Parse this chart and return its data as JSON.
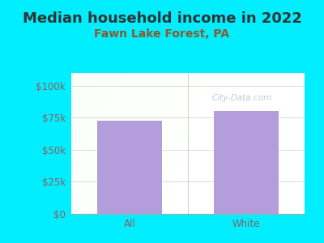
{
  "title": "Median household income in 2022",
  "subtitle": "Fawn Lake Forest, PA",
  "categories": [
    "All",
    "White"
  ],
  "values": [
    73000,
    80500
  ],
  "bar_color": "#b39ddb",
  "background_color": "#00eeff",
  "plot_bg_color_left": "#d4edda",
  "plot_bg_color_right": "#f0f8f0",
  "plot_bg_color_top": "#e8f5e9",
  "plot_bg_color_bottom": "#ffffff",
  "title_color": "#333333",
  "subtitle_color": "#8b5a2b",
  "tick_color": "#8b6060",
  "yticks": [
    0,
    25000,
    50000,
    75000,
    100000
  ],
  "ytick_labels": [
    "$0",
    "$25k",
    "$50k",
    "$75k",
    "$100k"
  ],
  "ylim": [
    0,
    110000
  ],
  "watermark": "City-Data.com",
  "title_fontsize": 13,
  "subtitle_fontsize": 10,
  "tick_fontsize": 8.5,
  "bar_width": 0.55
}
